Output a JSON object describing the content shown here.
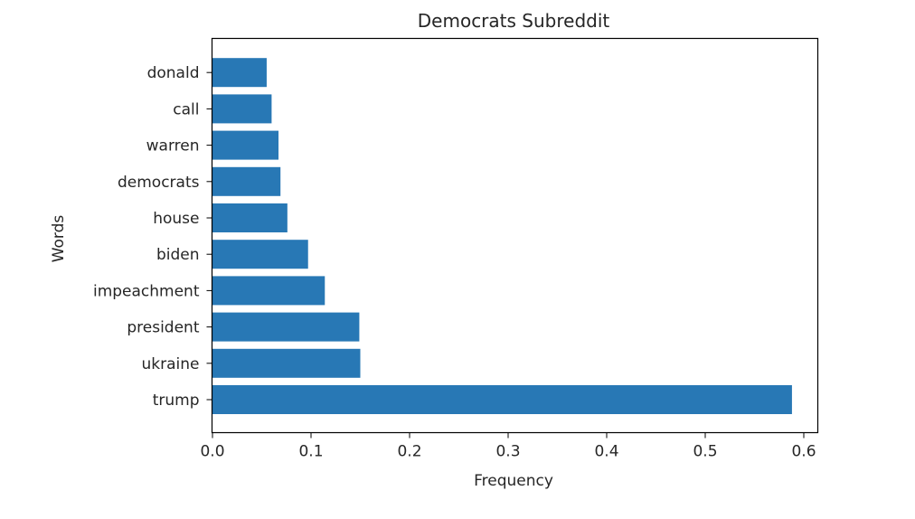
{
  "chart_data": {
    "type": "bar",
    "orientation": "horizontal",
    "title": "Democrats Subreddit",
    "xlabel": "Frequency",
    "ylabel": "Words",
    "categories": [
      "trump",
      "ukraine",
      "president",
      "impeachment",
      "biden",
      "house",
      "democrats",
      "warren",
      "call",
      "donald"
    ],
    "values": [
      0.588,
      0.15,
      0.149,
      0.114,
      0.097,
      0.076,
      0.069,
      0.067,
      0.06,
      0.055
    ],
    "xlim": [
      0.0,
      0.62
    ],
    "xticks": [
      0.0,
      0.1,
      0.2,
      0.3,
      0.4,
      0.5,
      0.6
    ],
    "xtick_labels": [
      "0.0",
      "0.1",
      "0.2",
      "0.3",
      "0.4",
      "0.5",
      "0.6"
    ],
    "grid": false,
    "bar_color": "#2878b5"
  }
}
